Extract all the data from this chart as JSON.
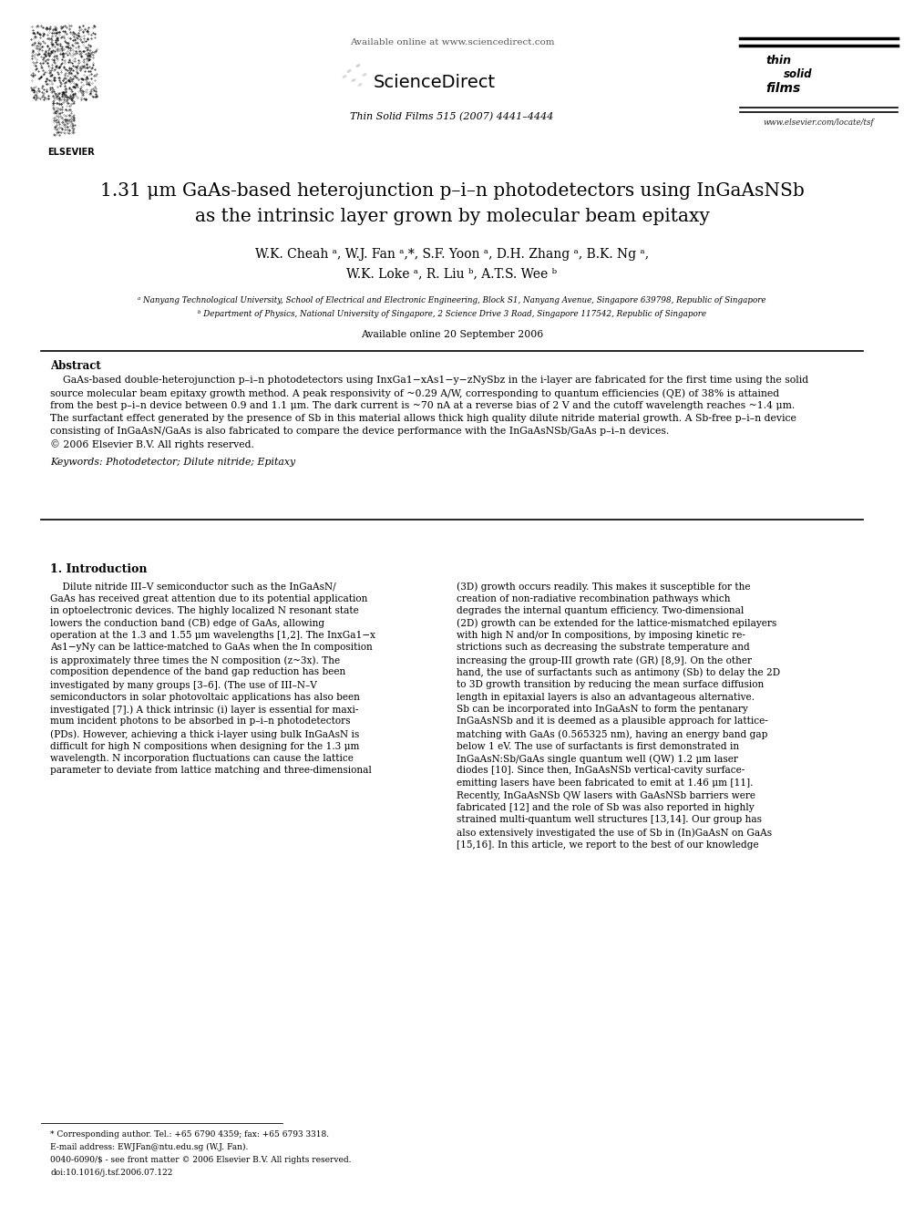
{
  "page_width": 9.92,
  "page_height": 13.23,
  "dpi": 100,
  "bg_color": "#ffffff",
  "header_available": "Available online at www.sciencedirect.com",
  "header_journal": "Thin Solid Films 515 (2007) 4441–4444",
  "header_url": "www.elsevier.com/locate/tsf",
  "title_line1": "1.31 μm GaAs-based heterojunction p–i–n photodetectors using InGaAsNSb",
  "title_line2": "as the intrinsic layer grown by molecular beam epitaxy",
  "authors_line1": "W.K. Cheah ᵃ, W.J. Fan ᵃ,*, S.F. Yoon ᵃ, D.H. Zhang ᵃ, B.K. Ng ᵃ,",
  "authors_line2": "W.K. Loke ᵃ, R. Liu ᵇ, A.T.S. Wee ᵇ",
  "affil_a": "ᵃ Nanyang Technological University, School of Electrical and Electronic Engineering, Block S1, Nanyang Avenue, Singapore 639798, Republic of Singapore",
  "affil_b": "ᵇ Department of Physics, National University of Singapore, 2 Science Drive 3 Road, Singapore 117542, Republic of Singapore",
  "avail_date": "Available online 20 September 2006",
  "abstract_label": "Abstract",
  "abstract_body": "    GaAs-based double-heterojunction p–i–n photodetectors using InxGa1−xAs1−y−zNySbz in the i-layer are fabricated for the first time using the solid\nsource molecular beam epitaxy growth method. A peak responsivity of ~0.29 A/W, corresponding to quantum efficiencies (QE) of 38% is attained\nfrom the best p–i–n device between 0.9 and 1.1 μm. The dark current is ~70 nA at a reverse bias of 2 V and the cutoff wavelength reaches ~1.4 μm.\nThe surfactant effect generated by the presence of Sb in this material allows thick high quality dilute nitride material growth. A Sb-free p–i–n device\nconsisting of InGaAsN/GaAs is also fabricated to compare the device performance with the InGaAsNSb/GaAs p–i–n devices.\n© 2006 Elsevier B.V. All rights reserved.",
  "keywords_line": "Keywords: Photodetector; Dilute nitride; Epitaxy",
  "sec1_title": "1. Introduction",
  "sec1_col1_lines": [
    "    Dilute nitride III–V semiconductor such as the InGaAsN/",
    "GaAs has received great attention due to its potential application",
    "in optoelectronic devices. The highly localized N resonant state",
    "lowers the conduction band (CB) edge of GaAs, allowing",
    "operation at the 1.3 and 1.55 μm wavelengths [1,2]. The InxGa1−x",
    "As1−yNy can be lattice-matched to GaAs when the In composition",
    "is approximately three times the N composition (z~3x). The",
    "composition dependence of the band gap reduction has been",
    "investigated by many groups [3–6]. (The use of III–N–V",
    "semiconductors in solar photovoltaic applications has also been",
    "investigated [7].) A thick intrinsic (i) layer is essential for maxi-",
    "mum incident photons to be absorbed in p–i–n photodetectors",
    "(PDs). However, achieving a thick i-layer using bulk InGaAsN is",
    "difficult for high N compositions when designing for the 1.3 μm",
    "wavelength. N incorporation fluctuations can cause the lattice",
    "parameter to deviate from lattice matching and three-dimensional"
  ],
  "sec1_col2_lines": [
    "(3D) growth occurs readily. This makes it susceptible for the",
    "creation of non-radiative recombination pathways which",
    "degrades the internal quantum efficiency. Two-dimensional",
    "(2D) growth can be extended for the lattice-mismatched epilayers",
    "with high N and/or In compositions, by imposing kinetic re-",
    "strictions such as decreasing the substrate temperature and",
    "increasing the group-III growth rate (GR) [8,9]. On the other",
    "hand, the use of surfactants such as antimony (Sb) to delay the 2D",
    "to 3D growth transition by reducing the mean surface diffusion",
    "length in epitaxial layers is also an advantageous alternative.",
    "Sb can be incorporated into InGaAsN to form the pentanary",
    "InGaAsNSb and it is deemed as a plausible approach for lattice-",
    "matching with GaAs (0.565325 nm), having an energy band gap",
    "below 1 eV. The use of surfactants is first demonstrated in",
    "InGaAsN:Sb/GaAs single quantum well (QW) 1.2 μm laser",
    "diodes [10]. Since then, InGaAsNSb vertical-cavity surface-",
    "emitting lasers have been fabricated to emit at 1.46 μm [11].",
    "Recently, InGaAsNSb QW lasers with GaAsNSb barriers were",
    "fabricated [12] and the role of Sb was also reported in highly",
    "strained multi-quantum well structures [13,14]. Our group has",
    "also extensively investigated the use of Sb in (In)GaAsN on GaAs",
    "[15,16]. In this article, we report to the best of our knowledge"
  ],
  "footnote1": "* Corresponding author. Tel.: +65 6790 4359; fax: +65 6793 3318.",
  "footnote2": "E-mail address: EWJFan@ntu.edu.sg (W.J. Fan).",
  "footnote3": "0040-6090/$ - see front matter © 2006 Elsevier B.V. All rights reserved.",
  "footnote4": "doi:10.1016/j.tsf.2006.07.122"
}
